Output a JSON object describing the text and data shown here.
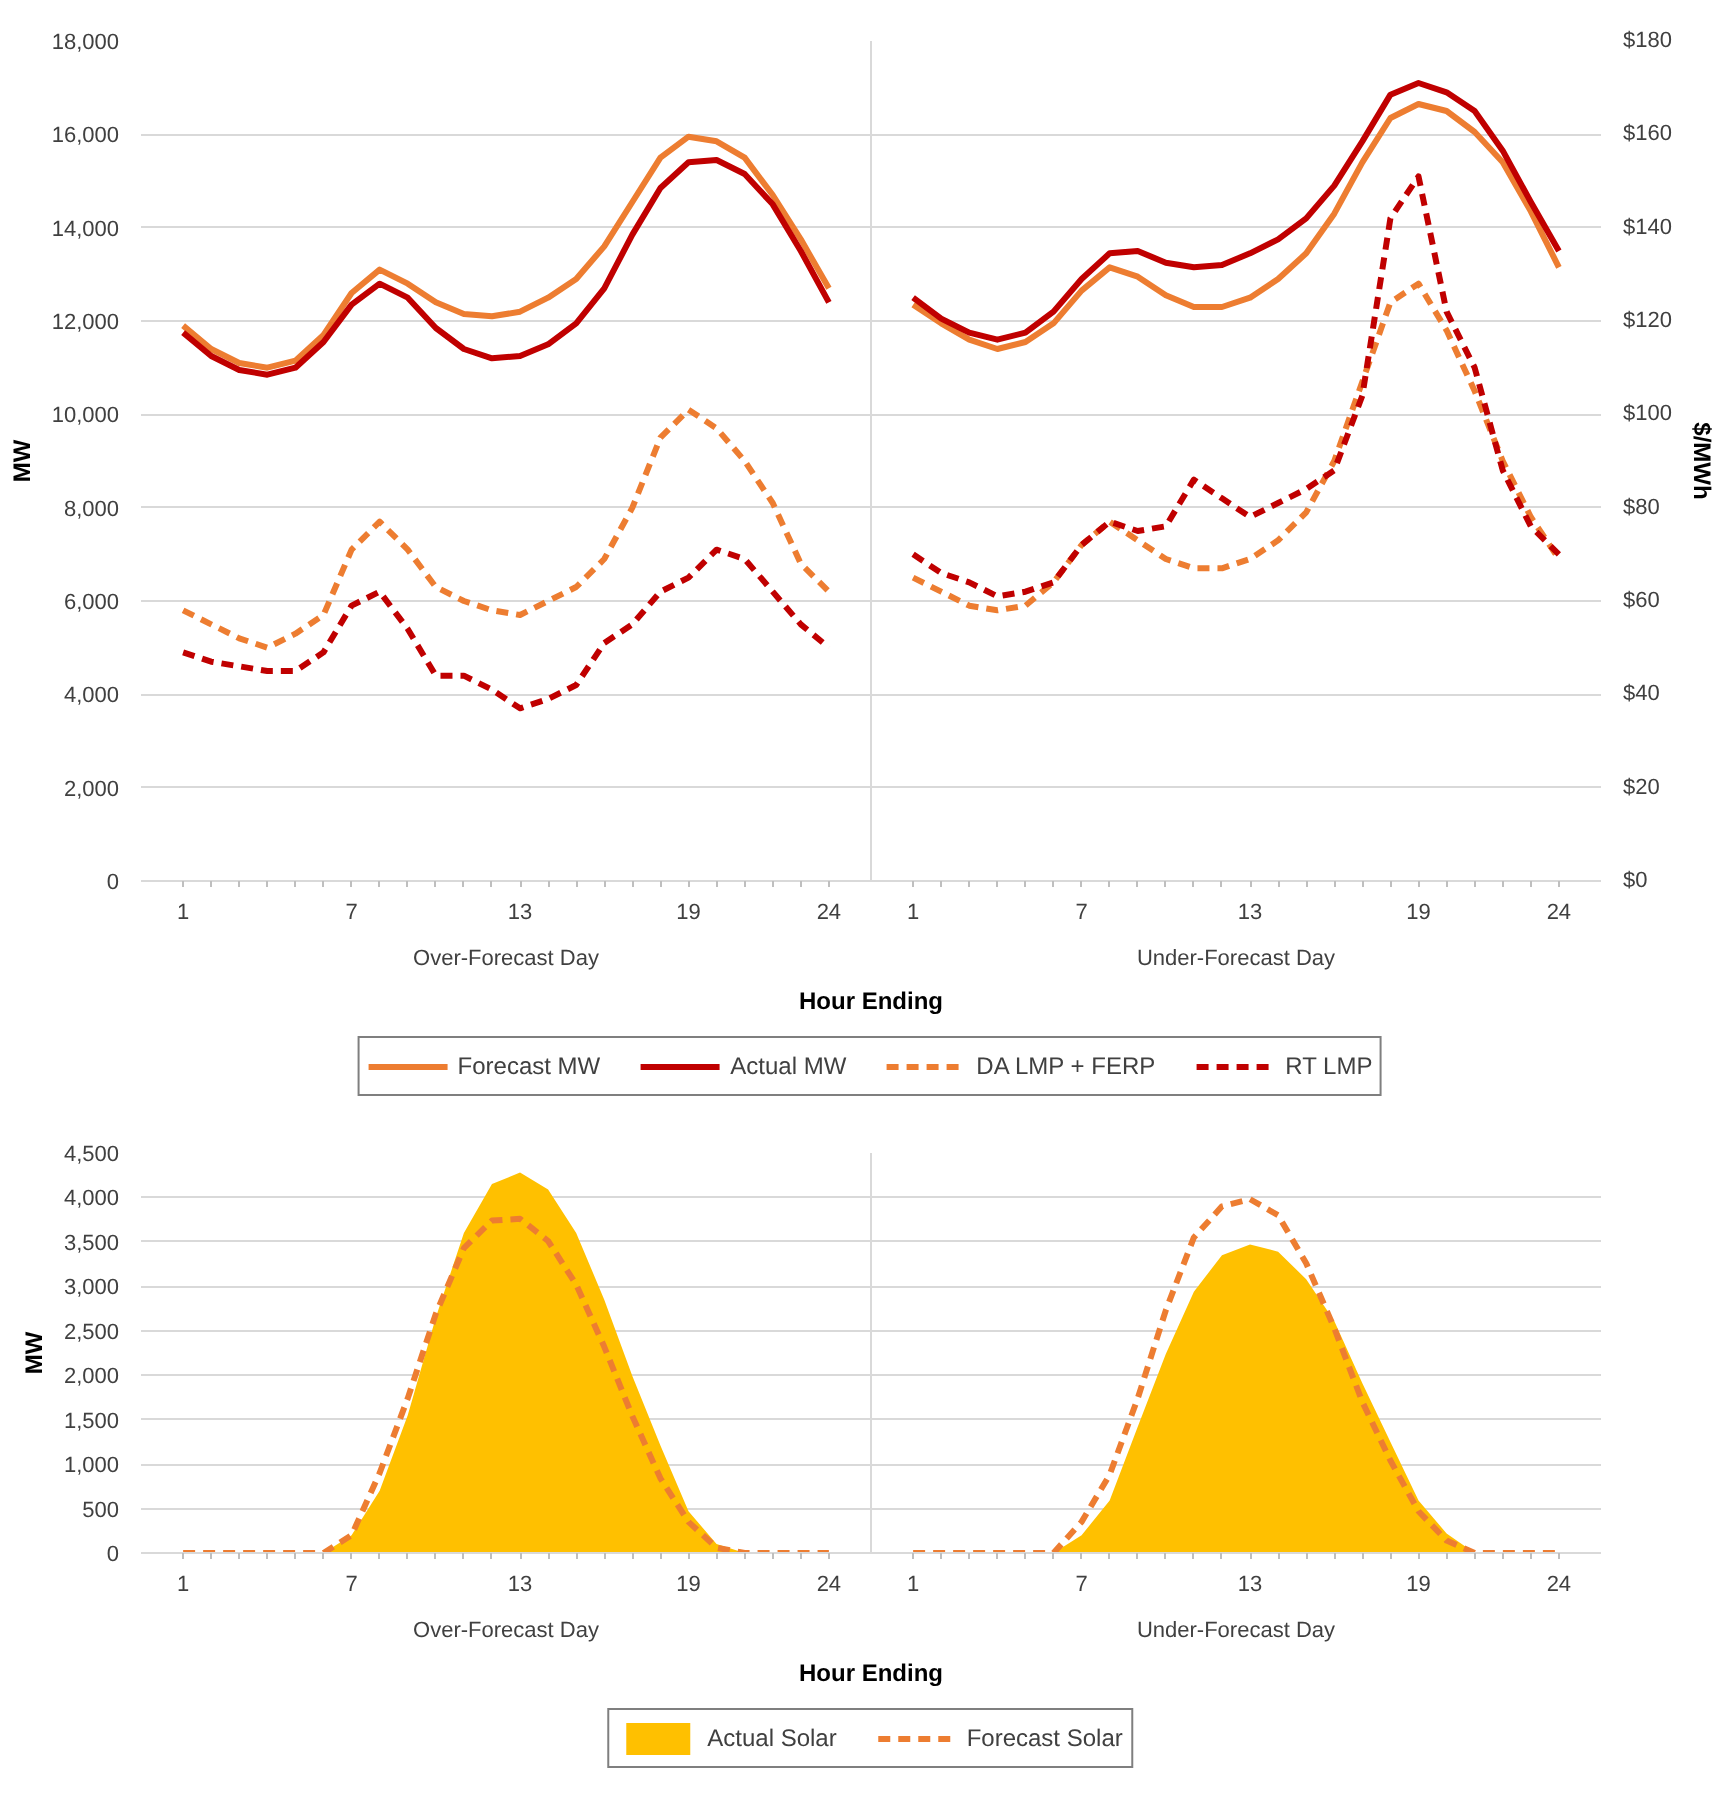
{
  "chart_data": [
    {
      "type": "line",
      "xlabel": "Hour Ending",
      "ylabel": "MW",
      "y2label": "$/MWh",
      "categories": [
        "1",
        null,
        null,
        null,
        null,
        null,
        "7",
        null,
        null,
        null,
        null,
        null,
        "13",
        null,
        null,
        null,
        null,
        null,
        "19",
        null,
        null,
        null,
        null,
        "24",
        "1",
        null,
        null,
        null,
        null,
        null,
        "7",
        null,
        null,
        null,
        null,
        null,
        "13",
        null,
        null,
        null,
        null,
        null,
        "19",
        null,
        null,
        null,
        null,
        "24"
      ],
      "annotations": [
        "Over-Forecast Day",
        "Under-Forecast Day"
      ],
      "ylim": [
        0,
        18000
      ],
      "yticks": [
        0,
        {
          "value": 2000,
          "label": "2,000"
        },
        {
          "value": 4000,
          "label": "4,000"
        },
        {
          "value": 6000,
          "label": "6,000"
        },
        {
          "value": 8000,
          "label": "8,000"
        },
        {
          "value": 10000,
          "label": "10,000"
        },
        {
          "value": 12000,
          "label": "12,000"
        },
        {
          "value": 14000,
          "label": "14,000"
        },
        {
          "value": 16000,
          "label": "16,000"
        },
        {
          "value": 18000,
          "label": "18,000"
        }
      ],
      "y2lim": [
        0,
        180
      ],
      "y2ticks": [
        {
          "value": 0,
          "label": "$0"
        },
        {
          "value": 20,
          "label": "$20"
        },
        {
          "value": 40,
          "label": "$40"
        },
        {
          "value": 60,
          "label": "$60"
        },
        {
          "value": 80,
          "label": "$80"
        },
        {
          "value": 100,
          "label": "$100"
        },
        {
          "value": 120,
          "label": "$120"
        },
        {
          "value": 140,
          "label": "$140"
        },
        {
          "value": 160,
          "label": "$160"
        },
        {
          "value": 180,
          "label": "$180"
        }
      ],
      "grid": "y",
      "legend": "bottom",
      "series": [
        {
          "name": "Forecast MW",
          "color": "#ed7d31",
          "line_style": "solid",
          "values": [
            11900,
            11400,
            11100,
            11000,
            11150,
            11700,
            12600,
            13100,
            12800,
            12400,
            12150,
            12100,
            12200,
            12500,
            12900,
            13600,
            14550,
            15500,
            15950,
            15850,
            15500,
            14700,
            13750,
            12700,
            12350,
            11950,
            11600,
            11400,
            11550,
            11950,
            12650,
            13150,
            12950,
            12550,
            12300,
            12300,
            12500,
            12900,
            13450,
            14300,
            15400,
            16350,
            16650,
            16500,
            16050,
            15400,
            14350,
            13150
          ]
        },
        {
          "name": "Actual MW",
          "color": "#c00000",
          "line_style": "solid",
          "values": [
            11750,
            11250,
            10950,
            10850,
            11000,
            11550,
            12350,
            12800,
            12500,
            11850,
            11400,
            11200,
            11250,
            11500,
            11950,
            12700,
            13850,
            14850,
            15400,
            15450,
            15150,
            14500,
            13500,
            12400,
            12500,
            12050,
            11750,
            11600,
            11750,
            12200,
            12900,
            13450,
            13500,
            13250,
            13150,
            13200,
            13450,
            13750,
            14200,
            14900,
            15850,
            16850,
            17100,
            16900,
            16500,
            15650,
            14550,
            13500
          ]
        },
        {
          "name": "DA LMP + FERP",
          "color": "#ed7d31",
          "line_style": "dashed",
          "axis": "y2",
          "values": [
            58,
            55,
            52,
            50,
            53,
            57,
            71,
            77,
            71,
            63,
            60,
            58,
            57,
            60,
            63,
            69,
            80,
            95,
            101,
            97,
            90,
            81,
            68,
            62,
            65,
            62,
            59,
            58,
            59,
            64,
            72,
            77,
            73,
            69,
            67,
            67,
            69,
            73,
            79,
            90,
            107,
            124,
            128,
            118,
            105,
            90,
            78,
            69
          ]
        },
        {
          "name": "RT LMP",
          "color": "#c00000",
          "line_style": "dashed",
          "axis": "y2",
          "values": [
            49,
            47,
            46,
            45,
            45,
            49,
            59,
            62,
            54,
            44,
            44,
            41,
            37,
            39,
            42,
            51,
            55,
            62,
            65,
            71,
            69,
            62,
            55,
            50,
            70,
            66,
            64,
            61,
            62,
            64,
            72,
            77,
            75,
            76,
            86,
            82,
            78,
            81,
            84,
            88,
            104,
            142,
            151,
            122,
            110,
            88,
            76,
            70
          ]
        }
      ]
    },
    {
      "type": "area",
      "xlabel": "Hour Ending",
      "ylabel": "MW",
      "categories": [
        "1",
        null,
        null,
        null,
        null,
        null,
        "7",
        null,
        null,
        null,
        null,
        null,
        "13",
        null,
        null,
        null,
        null,
        null,
        "19",
        null,
        null,
        null,
        null,
        "24",
        "1",
        null,
        null,
        null,
        null,
        null,
        "7",
        null,
        null,
        null,
        null,
        null,
        "13",
        null,
        null,
        null,
        null,
        null,
        "19",
        null,
        null,
        null,
        null,
        "24"
      ],
      "annotations": [
        "Over-Forecast Day",
        "Under-Forecast Day"
      ],
      "ylim": [
        0,
        4500
      ],
      "yticks": [
        0,
        500,
        {
          "value": 1000,
          "label": "1,000"
        },
        {
          "value": 1500,
          "label": "1,500"
        },
        {
          "value": 2000,
          "label": "2,000"
        },
        {
          "value": 2500,
          "label": "2,500"
        },
        {
          "value": 3000,
          "label": "3,000"
        },
        {
          "value": 3500,
          "label": "3,500"
        },
        {
          "value": 4000,
          "label": "4,000"
        },
        {
          "value": 4500,
          "label": "4,500"
        }
      ],
      "grid": "y",
      "legend": "bottom",
      "series": [
        {
          "name": "Actual Solar",
          "color": "#ffc000",
          "values": [
            0,
            0,
            0,
            0,
            0,
            0,
            200,
            700,
            1550,
            2650,
            3600,
            4150,
            4280,
            4090,
            3600,
            2850,
            1990,
            1210,
            470,
            100,
            0,
            0,
            0,
            0,
            0,
            0,
            0,
            0,
            0,
            0,
            200,
            590,
            1420,
            2240,
            2940,
            3350,
            3470,
            3390,
            3080,
            2610,
            1910,
            1250,
            590,
            220,
            0,
            0,
            0,
            0
          ]
        },
        {
          "name": "Forecast Solar",
          "type": "line",
          "line_style": "dashed",
          "color": "#ed7d31",
          "values": [
            0,
            0,
            0,
            0,
            0,
            0,
            200,
            900,
            1740,
            2690,
            3430,
            3740,
            3760,
            3510,
            3020,
            2320,
            1540,
            840,
            350,
            60,
            0,
            0,
            0,
            0,
            0,
            0,
            0,
            0,
            0,
            0,
            350,
            880,
            1740,
            2730,
            3550,
            3900,
            3980,
            3800,
            3260,
            2530,
            1700,
            1040,
            470,
            140,
            0,
            0,
            0,
            0
          ]
        }
      ]
    }
  ]
}
